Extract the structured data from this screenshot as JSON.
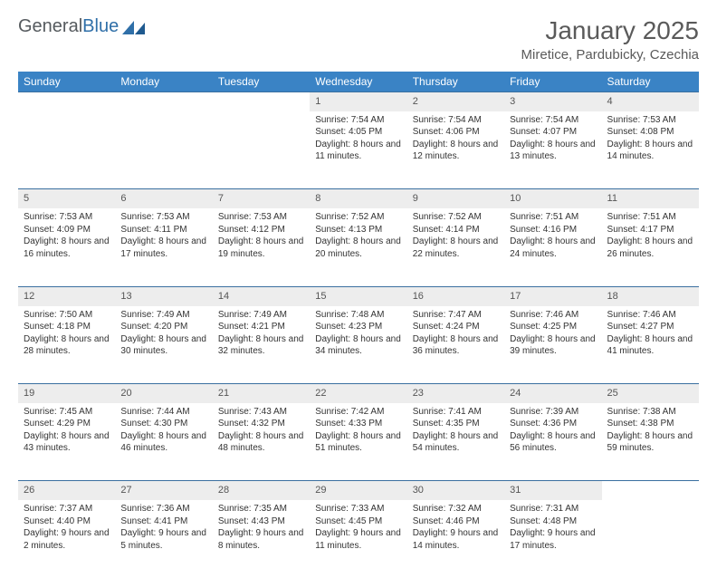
{
  "brand": {
    "name1": "General",
    "name2": "Blue"
  },
  "title": "January 2025",
  "location": "Miretice, Pardubicky, Czechia",
  "colors": {
    "header_bg": "#3a83c5",
    "header_text": "#ffffff",
    "daynum_bg": "#ededed",
    "rule": "#3a6fa0",
    "brand_gray": "#555a5e",
    "brand_blue": "#2f6fa8"
  },
  "weekdays": [
    "Sunday",
    "Monday",
    "Tuesday",
    "Wednesday",
    "Thursday",
    "Friday",
    "Saturday"
  ],
  "weeks": [
    [
      null,
      null,
      null,
      {
        "n": "1",
        "sr": "7:54 AM",
        "ss": "4:05 PM",
        "dl": "8 hours and 11 minutes."
      },
      {
        "n": "2",
        "sr": "7:54 AM",
        "ss": "4:06 PM",
        "dl": "8 hours and 12 minutes."
      },
      {
        "n": "3",
        "sr": "7:54 AM",
        "ss": "4:07 PM",
        "dl": "8 hours and 13 minutes."
      },
      {
        "n": "4",
        "sr": "7:53 AM",
        "ss": "4:08 PM",
        "dl": "8 hours and 14 minutes."
      }
    ],
    [
      {
        "n": "5",
        "sr": "7:53 AM",
        "ss": "4:09 PM",
        "dl": "8 hours and 16 minutes."
      },
      {
        "n": "6",
        "sr": "7:53 AM",
        "ss": "4:11 PM",
        "dl": "8 hours and 17 minutes."
      },
      {
        "n": "7",
        "sr": "7:53 AM",
        "ss": "4:12 PM",
        "dl": "8 hours and 19 minutes."
      },
      {
        "n": "8",
        "sr": "7:52 AM",
        "ss": "4:13 PM",
        "dl": "8 hours and 20 minutes."
      },
      {
        "n": "9",
        "sr": "7:52 AM",
        "ss": "4:14 PM",
        "dl": "8 hours and 22 minutes."
      },
      {
        "n": "10",
        "sr": "7:51 AM",
        "ss": "4:16 PM",
        "dl": "8 hours and 24 minutes."
      },
      {
        "n": "11",
        "sr": "7:51 AM",
        "ss": "4:17 PM",
        "dl": "8 hours and 26 minutes."
      }
    ],
    [
      {
        "n": "12",
        "sr": "7:50 AM",
        "ss": "4:18 PM",
        "dl": "8 hours and 28 minutes."
      },
      {
        "n": "13",
        "sr": "7:49 AM",
        "ss": "4:20 PM",
        "dl": "8 hours and 30 minutes."
      },
      {
        "n": "14",
        "sr": "7:49 AM",
        "ss": "4:21 PM",
        "dl": "8 hours and 32 minutes."
      },
      {
        "n": "15",
        "sr": "7:48 AM",
        "ss": "4:23 PM",
        "dl": "8 hours and 34 minutes."
      },
      {
        "n": "16",
        "sr": "7:47 AM",
        "ss": "4:24 PM",
        "dl": "8 hours and 36 minutes."
      },
      {
        "n": "17",
        "sr": "7:46 AM",
        "ss": "4:25 PM",
        "dl": "8 hours and 39 minutes."
      },
      {
        "n": "18",
        "sr": "7:46 AM",
        "ss": "4:27 PM",
        "dl": "8 hours and 41 minutes."
      }
    ],
    [
      {
        "n": "19",
        "sr": "7:45 AM",
        "ss": "4:29 PM",
        "dl": "8 hours and 43 minutes."
      },
      {
        "n": "20",
        "sr": "7:44 AM",
        "ss": "4:30 PM",
        "dl": "8 hours and 46 minutes."
      },
      {
        "n": "21",
        "sr": "7:43 AM",
        "ss": "4:32 PM",
        "dl": "8 hours and 48 minutes."
      },
      {
        "n": "22",
        "sr": "7:42 AM",
        "ss": "4:33 PM",
        "dl": "8 hours and 51 minutes."
      },
      {
        "n": "23",
        "sr": "7:41 AM",
        "ss": "4:35 PM",
        "dl": "8 hours and 54 minutes."
      },
      {
        "n": "24",
        "sr": "7:39 AM",
        "ss": "4:36 PM",
        "dl": "8 hours and 56 minutes."
      },
      {
        "n": "25",
        "sr": "7:38 AM",
        "ss": "4:38 PM",
        "dl": "8 hours and 59 minutes."
      }
    ],
    [
      {
        "n": "26",
        "sr": "7:37 AM",
        "ss": "4:40 PM",
        "dl": "9 hours and 2 minutes."
      },
      {
        "n": "27",
        "sr": "7:36 AM",
        "ss": "4:41 PM",
        "dl": "9 hours and 5 minutes."
      },
      {
        "n": "28",
        "sr": "7:35 AM",
        "ss": "4:43 PM",
        "dl": "9 hours and 8 minutes."
      },
      {
        "n": "29",
        "sr": "7:33 AM",
        "ss": "4:45 PM",
        "dl": "9 hours and 11 minutes."
      },
      {
        "n": "30",
        "sr": "7:32 AM",
        "ss": "4:46 PM",
        "dl": "9 hours and 14 minutes."
      },
      {
        "n": "31",
        "sr": "7:31 AM",
        "ss": "4:48 PM",
        "dl": "9 hours and 17 minutes."
      },
      null
    ]
  ],
  "labels": {
    "sunrise": "Sunrise: ",
    "sunset": "Sunset: ",
    "daylight": "Daylight: "
  }
}
